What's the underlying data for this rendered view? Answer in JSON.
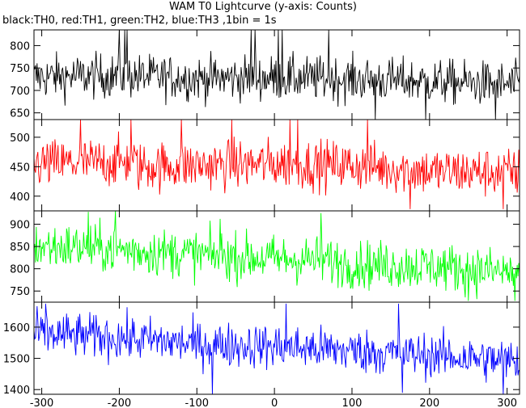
{
  "chart_data": {
    "type": "line",
    "title": "WAM T0 Lightcurve (y-axis: Counts)",
    "subtitle": "black:TH0, red:TH1, green:TH2, blue:TH3 ,1bin = 1s",
    "xlim": [
      -310,
      316
    ],
    "x_ticks": [
      -300,
      -200,
      -100,
      0,
      100,
      200,
      300
    ],
    "panels": [
      {
        "name": "TH0",
        "color": "#000000",
        "ylim": [
          635,
          835
        ],
        "y_ticks": [
          650,
          700,
          750,
          800
        ],
        "mean": [
          [
            -310,
            730
          ],
          [
            -200,
            733
          ],
          [
            -100,
            727
          ],
          [
            0,
            728
          ],
          [
            100,
            725
          ],
          [
            200,
            720
          ],
          [
            316,
            712
          ]
        ],
        "noise": 25,
        "spikes": [
          [
            -200,
            835
          ],
          [
            -193,
            835
          ],
          [
            -190,
            835
          ],
          [
            -30,
            835
          ],
          [
            -25,
            835
          ],
          [
            5,
            835
          ],
          [
            10,
            835
          ],
          [
            70,
            835
          ],
          [
            130,
            635
          ],
          [
            195,
            635
          ],
          [
            285,
            635
          ]
        ]
      },
      {
        "name": "TH1",
        "color": "#ff0000",
        "ylim": [
          375,
          530
        ],
        "y_ticks": [
          400,
          450,
          500
        ],
        "mean": [
          [
            -310,
            455
          ],
          [
            -250,
            456
          ],
          [
            -200,
            458
          ],
          [
            -180,
            460
          ],
          [
            -178,
            450
          ],
          [
            0,
            455
          ],
          [
            100,
            452
          ],
          [
            180,
            445
          ],
          [
            200,
            442
          ],
          [
            316,
            440
          ]
        ],
        "noise": 21,
        "spikes": [
          [
            -250,
            530
          ],
          [
            -185,
            530
          ],
          [
            -120,
            530
          ],
          [
            -55,
            530
          ],
          [
            20,
            530
          ],
          [
            30,
            530
          ],
          [
            120,
            530
          ],
          [
            175,
            378
          ],
          [
            295,
            378
          ]
        ]
      },
      {
        "name": "TH2",
        "color": "#00ff00",
        "ylim": [
          725,
          930
        ],
        "y_ticks": [
          750,
          800,
          850,
          900
        ],
        "mean": [
          [
            -310,
            850
          ],
          [
            -250,
            848
          ],
          [
            -200,
            843
          ],
          [
            -100,
            832
          ],
          [
            0,
            822
          ],
          [
            60,
            820
          ],
          [
            100,
            810
          ],
          [
            200,
            806
          ],
          [
            316,
            790
          ]
        ],
        "noise": 27,
        "spikes": [
          [
            -205,
            930
          ],
          [
            -240,
            928
          ],
          [
            -70,
            912
          ],
          [
            60,
            925
          ],
          [
            250,
            728
          ],
          [
            310,
            728
          ]
        ]
      },
      {
        "name": "TH3",
        "color": "#0000ff",
        "ylim": [
          1385,
          1680
        ],
        "y_ticks": [
          1400,
          1500,
          1600
        ],
        "mean": [
          [
            -310,
            1580
          ],
          [
            -200,
            1566
          ],
          [
            -100,
            1546
          ],
          [
            0,
            1538
          ],
          [
            100,
            1525
          ],
          [
            200,
            1510
          ],
          [
            316,
            1490
          ]
        ],
        "noise": 36,
        "spikes": [
          [
            -295,
            1675
          ],
          [
            -80,
            1385
          ],
          [
            15,
            1675
          ],
          [
            160,
            1675
          ],
          [
            165,
            1390
          ],
          [
            295,
            1385
          ]
        ]
      }
    ]
  }
}
